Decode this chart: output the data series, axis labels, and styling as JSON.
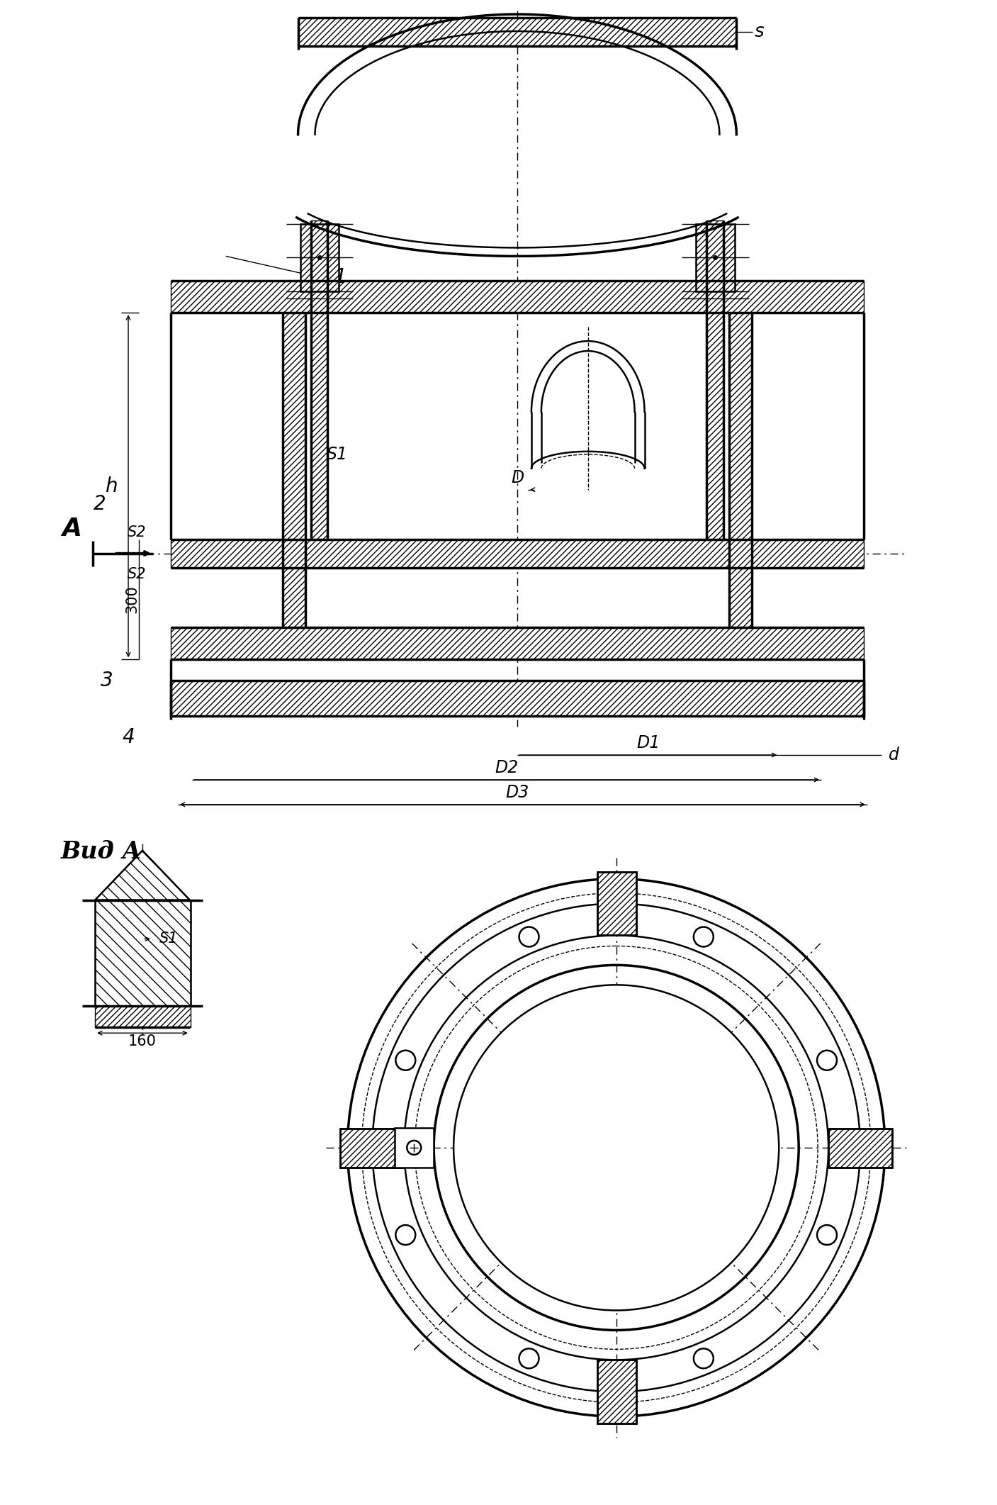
{
  "bg_color": "#ffffff",
  "line_color": "#000000",
  "fig_width": 14.07,
  "fig_height": 21.23,
  "lw_thick": 2.5,
  "lw_main": 1.8,
  "lw_thin": 1.0,
  "labels": {
    "view_label": "Вид А",
    "arrow_label": "А",
    "dim_s": "s",
    "dim_s1": "S1",
    "dim_s2": "S2",
    "dim_s3": "S2",
    "dim_h": "h",
    "dim_1": "1",
    "dim_2": "2",
    "dim_3": "3",
    "dim_4": "4",
    "dim_D": "D",
    "dim_D1": "D1",
    "dim_D2": "D2",
    "dim_D3": "D3",
    "dim_d": "d",
    "dim_300": "300",
    "dim_160": "160"
  },
  "font_sizes": {
    "callout": 20,
    "dim": 17,
    "view": 24,
    "small": 15
  }
}
